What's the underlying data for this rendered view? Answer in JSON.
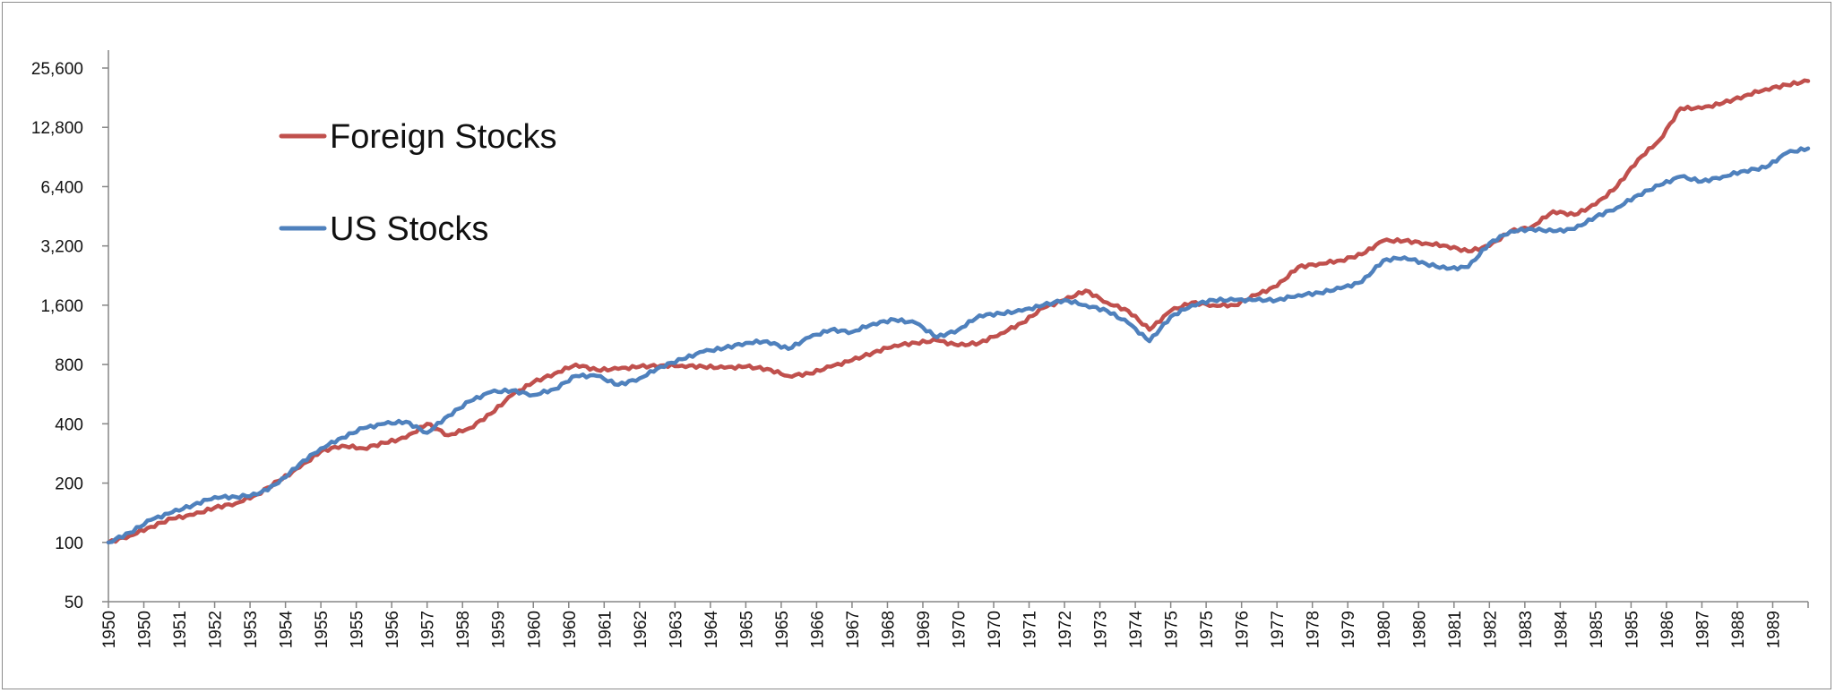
{
  "chart_data": {
    "type": "line",
    "title": "",
    "xlabel": "",
    "ylabel": "",
    "y_scale": "log2",
    "ylim": [
      50,
      25600
    ],
    "y_ticks": [
      50,
      100,
      200,
      400,
      800,
      1600,
      3200,
      6400,
      12800,
      25600
    ],
    "y_tick_labels": [
      "50",
      "100",
      "200",
      "400",
      "800",
      "1,600",
      "3,200",
      "6,400",
      "12,800",
      "25,600"
    ],
    "x_tick_labels": [
      "1950",
      "1950",
      "1951",
      "1952",
      "1953",
      "1954",
      "1955",
      "1955",
      "1956",
      "1957",
      "1958",
      "1959",
      "1960",
      "1960",
      "1961",
      "1962",
      "1963",
      "1964",
      "1965",
      "1965",
      "1966",
      "1967",
      "1968",
      "1969",
      "1970",
      "1970",
      "1971",
      "1972",
      "1973",
      "1974",
      "1975",
      "1975",
      "1976",
      "1977",
      "1978",
      "1979",
      "1980",
      "1980",
      "1981",
      "1982",
      "1983",
      "1984",
      "1985",
      "1985",
      "1986",
      "1987",
      "1988",
      "1989"
    ],
    "x_range": [
      1950.0,
      1990.0
    ],
    "grid": false,
    "legend_position": "top-left",
    "series": [
      {
        "name": "Foreign Stocks",
        "color": "#c0504d",
        "x": [
          1950.0,
          1950.5,
          1951.0,
          1951.5,
          1952.0,
          1952.5,
          1953.0,
          1953.5,
          1954.0,
          1954.5,
          1955.0,
          1955.5,
          1956.0,
          1956.5,
          1957.0,
          1957.5,
          1958.0,
          1958.5,
          1959.0,
          1959.5,
          1960.0,
          1960.5,
          1961.0,
          1961.5,
          1962.0,
          1962.5,
          1963.0,
          1963.5,
          1964.0,
          1964.5,
          1965.0,
          1965.5,
          1966.0,
          1966.5,
          1967.0,
          1967.5,
          1968.0,
          1968.5,
          1969.0,
          1969.5,
          1970.0,
          1970.5,
          1971.0,
          1971.5,
          1972.0,
          1972.5,
          1973.0,
          1973.5,
          1974.0,
          1974.5,
          1975.0,
          1975.5,
          1976.0,
          1976.5,
          1977.0,
          1977.5,
          1978.0,
          1978.5,
          1979.0,
          1979.5,
          1980.0,
          1980.5,
          1981.0,
          1981.5,
          1982.0,
          1982.5,
          1983.0,
          1983.5,
          1984.0,
          1984.5,
          1985.0,
          1985.5,
          1986.0,
          1986.5,
          1987.0,
          1987.5,
          1988.0,
          1988.5,
          1989.0,
          1989.5,
          1990.0
        ],
        "values": [
          100,
          108,
          120,
          132,
          138,
          150,
          158,
          175,
          205,
          240,
          290,
          310,
          300,
          320,
          340,
          400,
          350,
          380,
          450,
          560,
          650,
          720,
          800,
          750,
          760,
          780,
          790,
          790,
          780,
          770,
          780,
          760,
          700,
          720,
          780,
          840,
          920,
          1000,
          1030,
          1060,
          1000,
          1030,
          1150,
          1300,
          1550,
          1700,
          1900,
          1650,
          1500,
          1200,
          1500,
          1650,
          1600,
          1600,
          1800,
          2000,
          2500,
          2600,
          2700,
          2900,
          3400,
          3400,
          3300,
          3200,
          3000,
          3200,
          3800,
          4000,
          4800,
          4600,
          5200,
          6400,
          8800,
          11000,
          16000,
          16000,
          17000,
          18500,
          20000,
          21000,
          22000
        ]
      },
      {
        "name": "US Stocks",
        "color": "#4f81bd",
        "x": [
          1950.0,
          1950.5,
          1951.0,
          1951.5,
          1952.0,
          1952.5,
          1953.0,
          1953.5,
          1954.0,
          1954.5,
          1955.0,
          1955.5,
          1956.0,
          1956.5,
          1957.0,
          1957.5,
          1958.0,
          1958.5,
          1959.0,
          1959.5,
          1960.0,
          1960.5,
          1961.0,
          1961.5,
          1962.0,
          1962.5,
          1963.0,
          1963.5,
          1964.0,
          1964.5,
          1965.0,
          1965.5,
          1966.0,
          1966.5,
          1967.0,
          1967.5,
          1968.0,
          1968.5,
          1969.0,
          1969.5,
          1970.0,
          1970.5,
          1971.0,
          1971.5,
          1972.0,
          1972.5,
          1973.0,
          1973.5,
          1974.0,
          1974.5,
          1975.0,
          1975.5,
          1976.0,
          1976.5,
          1977.0,
          1977.5,
          1978.0,
          1978.5,
          1979.0,
          1979.5,
          1980.0,
          1980.5,
          1981.0,
          1981.5,
          1982.0,
          1982.5,
          1983.0,
          1983.5,
          1984.0,
          1984.5,
          1985.0,
          1985.5,
          1986.0,
          1986.5,
          1987.0,
          1987.5,
          1988.0,
          1988.5,
          1989.0,
          1989.5,
          1990.0
        ],
        "values": [
          100,
          112,
          130,
          142,
          155,
          170,
          170,
          175,
          200,
          250,
          300,
          340,
          380,
          400,
          410,
          360,
          440,
          520,
          580,
          590,
          560,
          600,
          700,
          700,
          630,
          680,
          780,
          850,
          930,
          970,
          1030,
          1050,
          960,
          1100,
          1200,
          1170,
          1290,
          1350,
          1300,
          1100,
          1200,
          1420,
          1450,
          1500,
          1600,
          1700,
          1600,
          1500,
          1300,
          1050,
          1400,
          1600,
          1700,
          1700,
          1700,
          1700,
          1800,
          1850,
          1950,
          2100,
          2700,
          2800,
          2600,
          2450,
          2500,
          3300,
          3800,
          3900,
          3800,
          3900,
          4500,
          5000,
          5800,
          6500,
          7200,
          6800,
          7200,
          7700,
          8000,
          9500,
          10000
        ]
      }
    ]
  }
}
